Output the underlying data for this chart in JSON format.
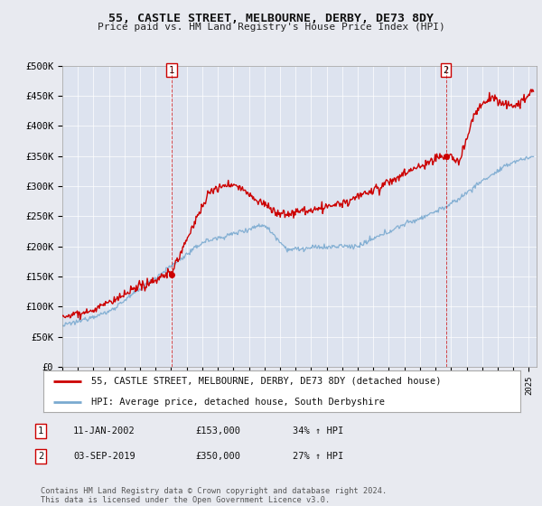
{
  "title": "55, CASTLE STREET, MELBOURNE, DERBY, DE73 8DY",
  "subtitle": "Price paid vs. HM Land Registry's House Price Index (HPI)",
  "ylim": [
    0,
    500000
  ],
  "xlim_start": 1995.0,
  "xlim_end": 2025.5,
  "purchase1_date": 2002.03,
  "purchase1_price": 153000,
  "purchase2_date": 2019.67,
  "purchase2_price": 350000,
  "legend_label_red": "55, CASTLE STREET, MELBOURNE, DERBY, DE73 8DY (detached house)",
  "legend_label_blue": "HPI: Average price, detached house, South Derbyshire",
  "footnote": "Contains HM Land Registry data © Crown copyright and database right 2024.\nThis data is licensed under the Open Government Licence v3.0.",
  "bg_color": "#e8eaf0",
  "plot_bg_color": "#dde3ef",
  "red_color": "#cc0000",
  "blue_color": "#7aaad0",
  "grid_color": "#ffffff"
}
